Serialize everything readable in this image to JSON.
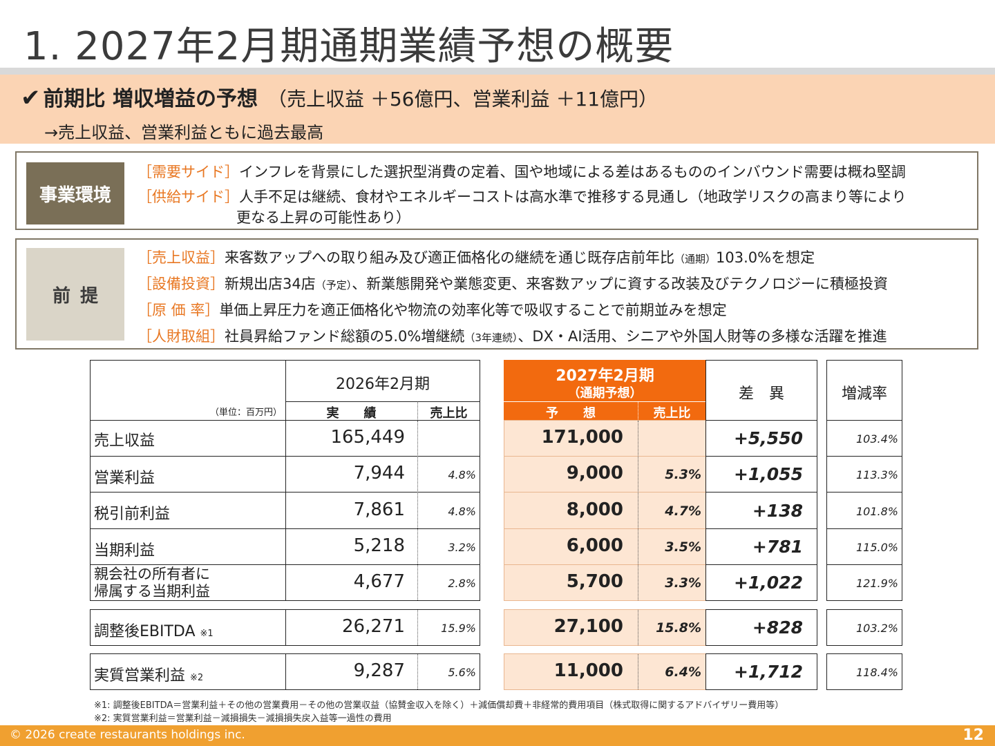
{
  "title": "1. 2027年2月期通期業績予想の概要",
  "headline": {
    "check": "✔",
    "main": "前期比 増収増益の予想",
    "sub": "（売上収益 ＋56億円、営業利益 ＋11億円）",
    "line2": "→売上収益、営業利益ともに過去最高"
  },
  "environment": {
    "badge": "事業環境",
    "items": [
      {
        "tag": "［需要サイド］",
        "text": "インフレを背景にした選択型消費の定着、国や地域による差はあるもののインバウンド需要は概ね堅調"
      },
      {
        "tag": "［供給サイド］",
        "text": "人手不足は継続、食材やエネルギーコストは高水準で推移する見通し（地政学リスクの高まり等により",
        "text2": "更なる上昇の可能性あり）"
      }
    ]
  },
  "premise": {
    "badge": "前提",
    "items": [
      {
        "tag": "［売上収益］",
        "pre": "来客数アップへの取り組み及び適正価格化の継続を通じ既存店前年比",
        "small": "（通期）",
        "post": "103.0%を想定"
      },
      {
        "tag": "［設備投資］",
        "pre": "新規出店34店",
        "small": "（予定）",
        "post": "、新業態開発や業態変更、来客数アップに資する改装及びテクノロジーに積極投資"
      },
      {
        "tag": "［原 価 率］",
        "pre": "単価上昇圧力を適正価格化や物流の効率化等で吸収することで前期並みを想定",
        "small": "",
        "post": ""
      },
      {
        "tag": "［人財取組］",
        "pre": "社員昇給ファンド総額の5.0%増継続",
        "small": "（3年連続）",
        "post": "、DX・AI活用、シニアや外国人財等の多様な活躍を推進"
      }
    ]
  },
  "table": {
    "unit": "（単位：百万円）",
    "prev_header": "2026年2月期",
    "prev_actual": "実　　績",
    "prev_ratio": "売上比",
    "fc_header1": "2027年2月期",
    "fc_header2": "（通期予想）",
    "fc_forecast": "予　　想",
    "fc_ratio": "売上比",
    "diff_header": "差　異",
    "rate_header": "増減率",
    "rows": [
      {
        "label": "売上収益",
        "label2": "",
        "note": "",
        "prev": "165,449",
        "prev_ratio": "",
        "fc": "171,000",
        "fc_ratio": "",
        "diff": "+5,550",
        "rate": "103.4%"
      },
      {
        "label": "営業利益",
        "label2": "",
        "note": "",
        "prev": "7,944",
        "prev_ratio": "4.8%",
        "fc": "9,000",
        "fc_ratio": "5.3%",
        "diff": "+1,055",
        "rate": "113.3%"
      },
      {
        "label": "税引前利益",
        "label2": "",
        "note": "",
        "prev": "7,861",
        "prev_ratio": "4.8%",
        "fc": "8,000",
        "fc_ratio": "4.7%",
        "diff": "+138",
        "rate": "101.8%"
      },
      {
        "label": "当期利益",
        "label2": "",
        "note": "",
        "prev": "5,218",
        "prev_ratio": "3.2%",
        "fc": "6,000",
        "fc_ratio": "3.5%",
        "diff": "+781",
        "rate": "115.0%"
      },
      {
        "label": "親会社の所有者に",
        "label2": "帰属する当期利益",
        "note": "",
        "prev": "4,677",
        "prev_ratio": "2.8%",
        "fc": "5,700",
        "fc_ratio": "3.3%",
        "diff": "+1,022",
        "rate": "121.9%"
      },
      {
        "label": "調整後EBITDA",
        "label2": "",
        "note": "※1",
        "prev": "26,271",
        "prev_ratio": "15.9%",
        "fc": "27,100",
        "fc_ratio": "15.8%",
        "diff": "+828",
        "rate": "103.2%"
      },
      {
        "label": "実質営業利益",
        "label2": "",
        "note": "※2",
        "prev": "9,287",
        "prev_ratio": "5.6%",
        "fc": "11,000",
        "fc_ratio": "6.4%",
        "diff": "+1,712",
        "rate": "118.4%"
      }
    ]
  },
  "notes": [
    "※1: 調整後EBITDA＝営業利益＋その他の営業費用－その他の営業収益（協賛金収入を除く）＋減価償却費＋非経常的費用項目（株式取得に関するアドバイザリー費用等）",
    "※2: 実質営業利益＝営業利益－減損損失－減損損失戻入益等一過性の費用"
  ],
  "footer": {
    "copyright": "© 2026 create restaurants holdings inc.",
    "page": "12"
  },
  "colors": {
    "accent_orange": "#f26a0f",
    "headline_band": "#fbd4b4",
    "forecast_fill": "#fde6d3",
    "tag_orange": "#e87722",
    "footer": "#f0a030",
    "env_badge": "#7a6f57",
    "premise_badge": "#dad5c8"
  }
}
